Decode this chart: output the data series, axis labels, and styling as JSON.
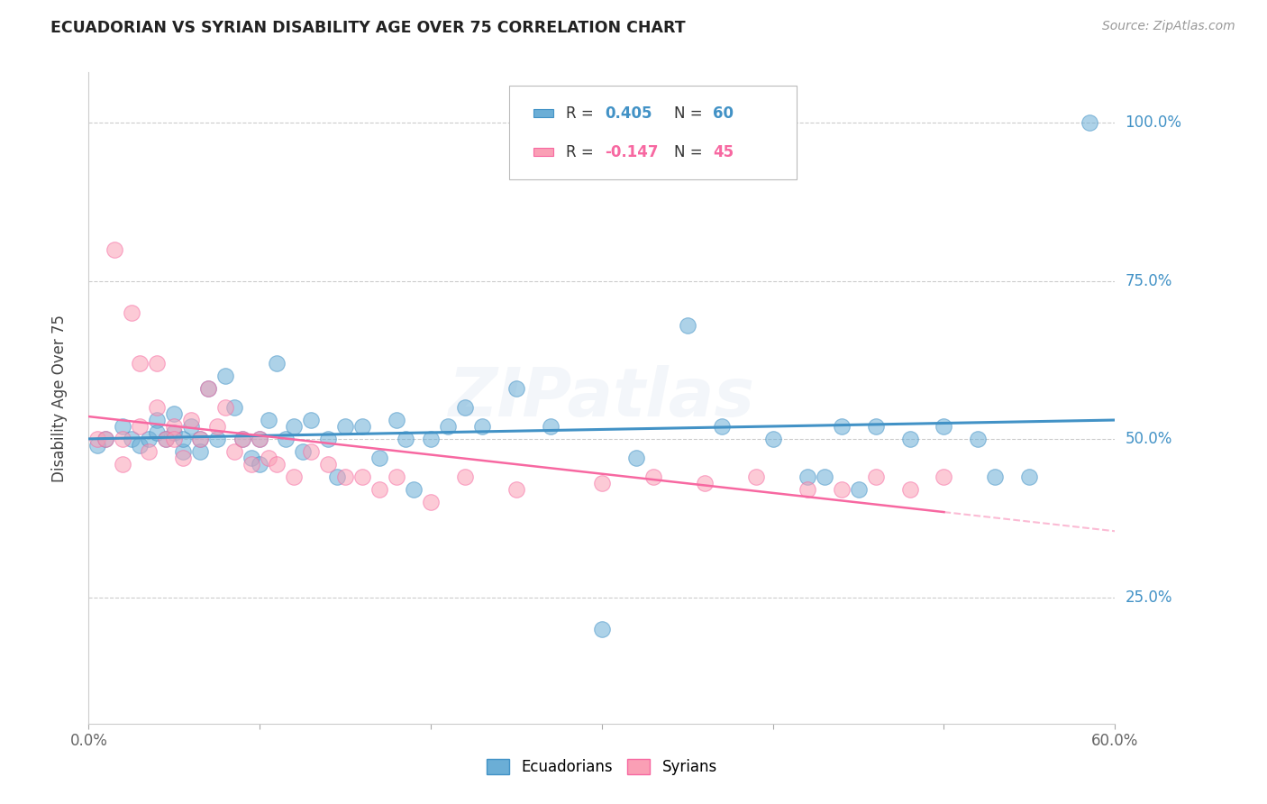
{
  "title": "ECUADORIAN VS SYRIAN DISABILITY AGE OVER 75 CORRELATION CHART",
  "source": "Source: ZipAtlas.com",
  "ylabel": "Disability Age Over 75",
  "xmin": 0.0,
  "xmax": 0.6,
  "ymin": 0.05,
  "ymax": 1.08,
  "watermark": "ZIPatlas",
  "color_blue": "#6BAED6",
  "color_pink": "#FA9FB5",
  "color_blue_line": "#4292C6",
  "color_pink_line": "#F768A1",
  "color_blue_text": "#4292C6",
  "color_pink_text": "#F768A1",
  "ytick_positions": [
    0.25,
    0.5,
    0.75,
    1.0
  ],
  "ytick_labels": [
    "25.0%",
    "50.0%",
    "75.0%",
    "100.0%"
  ],
  "blue_x": [
    0.005,
    0.01,
    0.02,
    0.025,
    0.03,
    0.035,
    0.04,
    0.04,
    0.045,
    0.05,
    0.05,
    0.055,
    0.055,
    0.06,
    0.065,
    0.065,
    0.07,
    0.075,
    0.08,
    0.085,
    0.09,
    0.095,
    0.1,
    0.1,
    0.105,
    0.11,
    0.115,
    0.12,
    0.125,
    0.13,
    0.14,
    0.145,
    0.15,
    0.16,
    0.17,
    0.18,
    0.185,
    0.19,
    0.2,
    0.21,
    0.22,
    0.23,
    0.25,
    0.27,
    0.3,
    0.32,
    0.35,
    0.37,
    0.4,
    0.42,
    0.43,
    0.44,
    0.45,
    0.46,
    0.48,
    0.5,
    0.52,
    0.53,
    0.55,
    0.585
  ],
  "blue_y": [
    0.49,
    0.5,
    0.52,
    0.5,
    0.49,
    0.5,
    0.53,
    0.51,
    0.5,
    0.54,
    0.51,
    0.48,
    0.5,
    0.52,
    0.5,
    0.48,
    0.58,
    0.5,
    0.6,
    0.55,
    0.5,
    0.47,
    0.5,
    0.46,
    0.53,
    0.62,
    0.5,
    0.52,
    0.48,
    0.53,
    0.5,
    0.44,
    0.52,
    0.52,
    0.47,
    0.53,
    0.5,
    0.42,
    0.5,
    0.52,
    0.55,
    0.52,
    0.58,
    0.52,
    0.2,
    0.47,
    0.68,
    0.52,
    0.5,
    0.44,
    0.44,
    0.52,
    0.42,
    0.52,
    0.5,
    0.52,
    0.5,
    0.44,
    0.44,
    1.0
  ],
  "pink_x": [
    0.005,
    0.01,
    0.015,
    0.02,
    0.02,
    0.025,
    0.03,
    0.03,
    0.035,
    0.04,
    0.04,
    0.045,
    0.05,
    0.05,
    0.055,
    0.06,
    0.065,
    0.07,
    0.075,
    0.08,
    0.085,
    0.09,
    0.095,
    0.1,
    0.105,
    0.11,
    0.12,
    0.13,
    0.14,
    0.15,
    0.16,
    0.17,
    0.18,
    0.2,
    0.22,
    0.25,
    0.3,
    0.33,
    0.36,
    0.39,
    0.42,
    0.44,
    0.46,
    0.48,
    0.5
  ],
  "pink_y": [
    0.5,
    0.5,
    0.8,
    0.5,
    0.46,
    0.7,
    0.62,
    0.52,
    0.48,
    0.62,
    0.55,
    0.5,
    0.52,
    0.5,
    0.47,
    0.53,
    0.5,
    0.58,
    0.52,
    0.55,
    0.48,
    0.5,
    0.46,
    0.5,
    0.47,
    0.46,
    0.44,
    0.48,
    0.46,
    0.44,
    0.44,
    0.42,
    0.44,
    0.4,
    0.44,
    0.42,
    0.43,
    0.44,
    0.43,
    0.44,
    0.42,
    0.42,
    0.44,
    0.42,
    0.44
  ]
}
